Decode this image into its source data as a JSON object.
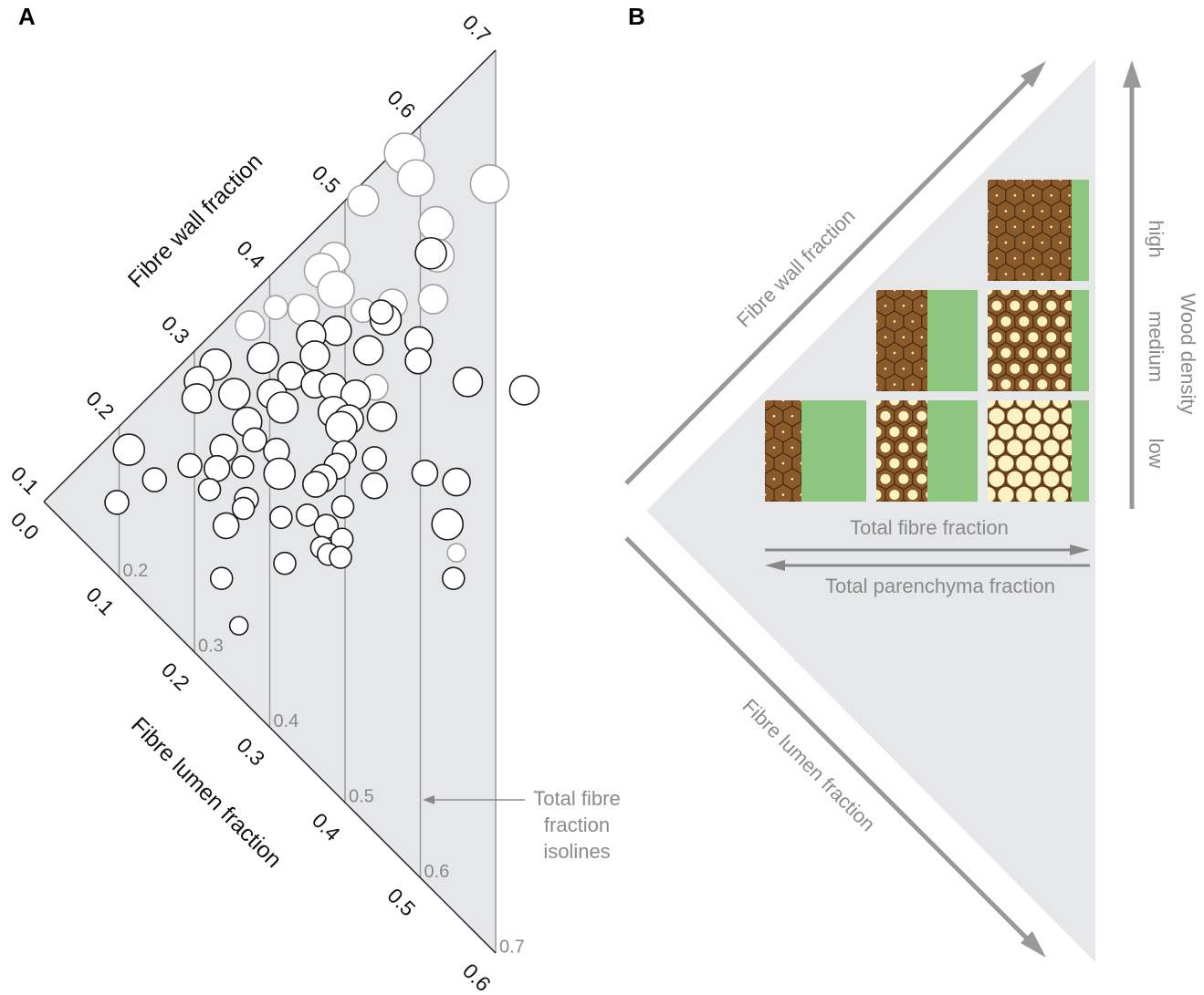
{
  "panel_labels": [
    "A",
    "B"
  ],
  "chart_data": {
    "type": "ternary-scatter",
    "y_label": "Fibre wall fraction",
    "x_label": "Fibre lumen fraction",
    "ylim": [
      0.1,
      0.7
    ],
    "yticks": [
      0.1,
      0.2,
      0.3,
      0.4,
      0.5,
      0.6,
      0.7
    ],
    "xlim": [
      0,
      0.6
    ],
    "xticks": [
      {
        "value": 0,
        "label": "0.0"
      },
      0.1,
      0.2,
      0.3,
      0.4,
      0.5,
      0.6
    ],
    "isolines": [
      0.2,
      0.3,
      0.4,
      0.5,
      0.6,
      0.7
    ],
    "annotation": [
      "Total fibre",
      "fraction",
      "isolines"
    ],
    "fill": "#e6e7e9",
    "series": [
      {
        "color": "#a0a0a0",
        "values": [
          0.571,
          0.562,
          0.607,
          0.512,
          0.545,
          0.455,
          0.525,
          0.438,
          0.435,
          0.383,
          0.4,
          0.354,
          0.439,
          0.463,
          0.493,
          0.396,
          0.34
        ],
        "x": [
          0.008,
          0.032,
          0.085,
          0.012,
          0.076,
          0.031,
          0.098,
          0.031,
          0.053,
          0.025,
          0.045,
          0.02,
          0.085,
          0.1,
          0.124,
          0.144,
          0.308
        ],
        "sizes": [
          22,
          20,
          21,
          17,
          19,
          17,
          18,
          19,
          20,
          13,
          17,
          16,
          13,
          16,
          16,
          14,
          10
        ]
      },
      {
        "color": "#1a1a1a",
        "values": [
          0.522,
          0.448,
          0.45,
          0.408,
          0.456,
          0.388,
          0.416,
          0.442,
          0.341,
          0.305,
          0.377,
          0.283,
          0.348,
          0.27,
          0.298,
          0.358,
          0.323,
          0.368,
          0.378,
          0.321,
          0.352,
          0.357,
          0.381,
          0.288,
          0.347,
          0.191,
          0.255,
          0.281,
          0.288,
          0.332,
          0.348,
          0.221,
          0.237,
          0.255,
          0.275,
          0.318,
          0.301,
          0.292,
          0.372,
          0.387,
          0.188,
          0.218,
          0.33,
          0.236,
          0.228,
          0.205,
          0.247,
          0.266,
          0.271,
          0.295,
          0.353,
          0.273,
          0.254,
          0.254,
          0.26,
          0.148,
          0.219,
          0.321,
          0.167,
          0.147,
          0.493,
          0.461
        ],
        "x": [
          0.092,
          0.106,
          0.098,
          0.081,
          0.142,
          0.067,
          0.115,
          0.155,
          0.05,
          0.023,
          0.083,
          0.023,
          0.081,
          0.033,
          0.055,
          0.102,
          0.08,
          0.116,
          0.136,
          0.096,
          0.133,
          0.148,
          0.168,
          0.082,
          0.148,
          0.022,
          0.084,
          0.099,
          0.121,
          0.167,
          0.191,
          0.073,
          0.093,
          0.109,
          0.138,
          0.171,
          0.17,
          0.169,
          0.234,
          0.261,
          0.059,
          0.102,
          0.209,
          0.133,
          0.137,
          0.137,
          0.168,
          0.184,
          0.204,
          0.202,
          0.283,
          0.223,
          0.215,
          0.224,
          0.234,
          0.049,
          0.201,
          0.323,
          0.169,
          0.212,
          0.245,
          0.202
        ],
        "sizes": [
          17,
          17,
          13,
          16,
          15,
          16,
          16,
          14,
          17,
          17,
          16,
          16,
          15,
          16,
          17,
          15,
          16,
          15,
          16,
          17,
          17,
          16,
          16,
          16,
          17,
          17,
          15,
          13,
          14,
          13,
          13,
          13,
          14,
          12,
          17,
          14,
          15,
          14,
          14,
          15,
          13,
          12,
          14,
          13,
          12,
          14,
          12,
          12,
          13,
          12,
          17,
          12,
          12,
          12,
          12,
          13,
          12,
          12,
          12,
          10,
          16,
          16
        ]
      }
    ]
  },
  "panel_b": {
    "wall_arrow": "Fibre wall fraction",
    "lumen_arrow": "Fibre lumen fraction",
    "fibre_arrow": "Total fibre fraction",
    "parenchyma_arrow": "Total parenchyma fraction",
    "density_title": "Wood density",
    "density_levels": [
      "high",
      "medium",
      "low"
    ]
  }
}
